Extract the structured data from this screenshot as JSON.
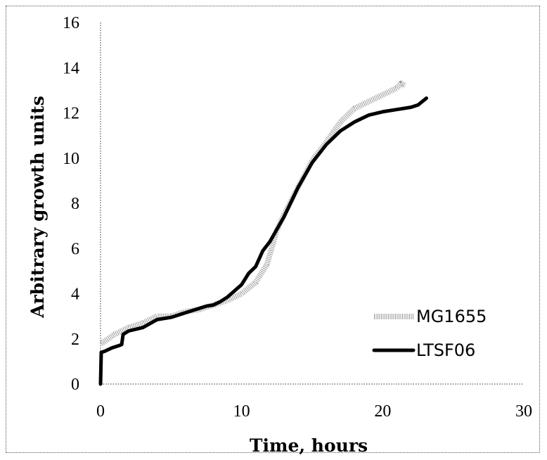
{
  "chart_data": {
    "type": "line",
    "title": "",
    "xlabel": "Time, hours",
    "ylabel": "Arbitrary growth units",
    "xlim": [
      0,
      30
    ],
    "ylim": [
      0,
      16
    ],
    "x_ticks": [
      "0",
      "10",
      "20",
      "30"
    ],
    "y_ticks": [
      "0",
      "2",
      "4",
      "6",
      "8",
      "10",
      "12",
      "14",
      "16"
    ],
    "grid": false,
    "legend_position": "right",
    "series": [
      {
        "name": "MG1655",
        "style": "dotted-gray",
        "color": "#a0a0a0",
        "points": [
          [
            0.05,
            1.8
          ],
          [
            0.3,
            1.9
          ],
          [
            1.0,
            2.2
          ],
          [
            2.0,
            2.5
          ],
          [
            3.0,
            2.7
          ],
          [
            4.0,
            3.0
          ],
          [
            5.0,
            3.0
          ],
          [
            6.0,
            3.2
          ],
          [
            7.0,
            3.3
          ],
          [
            8.0,
            3.5
          ],
          [
            9.0,
            3.7
          ],
          [
            10.0,
            4.0
          ],
          [
            11.0,
            4.5
          ],
          [
            11.8,
            5.3
          ],
          [
            12.5,
            6.8
          ],
          [
            13.0,
            7.5
          ],
          [
            14.0,
            8.7
          ],
          [
            15.0,
            9.9
          ],
          [
            16.0,
            10.7
          ],
          [
            17.0,
            11.6
          ],
          [
            18.0,
            12.2
          ],
          [
            19.0,
            12.5
          ],
          [
            20.0,
            12.8
          ],
          [
            21.0,
            13.1
          ],
          [
            21.3,
            13.3
          ],
          [
            21.6,
            13.2
          ]
        ]
      },
      {
        "name": "LTSF06",
        "style": "solid-black",
        "color": "#000000",
        "points": [
          [
            0.0,
            0.0
          ],
          [
            0.05,
            1.4
          ],
          [
            0.3,
            1.45
          ],
          [
            0.8,
            1.6
          ],
          [
            1.3,
            1.7
          ],
          [
            1.5,
            1.75
          ],
          [
            1.6,
            2.2
          ],
          [
            2.0,
            2.35
          ],
          [
            3.0,
            2.5
          ],
          [
            4.0,
            2.85
          ],
          [
            5.0,
            2.95
          ],
          [
            6.0,
            3.15
          ],
          [
            7.0,
            3.35
          ],
          [
            7.5,
            3.45
          ],
          [
            8.0,
            3.5
          ],
          [
            8.5,
            3.65
          ],
          [
            9.0,
            3.85
          ],
          [
            10.0,
            4.4
          ],
          [
            10.5,
            4.9
          ],
          [
            11.0,
            5.2
          ],
          [
            11.5,
            5.9
          ],
          [
            12.0,
            6.3
          ],
          [
            13.0,
            7.4
          ],
          [
            14.0,
            8.7
          ],
          [
            15.0,
            9.8
          ],
          [
            16.0,
            10.6
          ],
          [
            17.0,
            11.2
          ],
          [
            18.0,
            11.6
          ],
          [
            19.0,
            11.9
          ],
          [
            20.0,
            12.05
          ],
          [
            21.0,
            12.15
          ],
          [
            22.0,
            12.25
          ],
          [
            22.5,
            12.35
          ],
          [
            23.1,
            12.65
          ]
        ]
      }
    ]
  }
}
